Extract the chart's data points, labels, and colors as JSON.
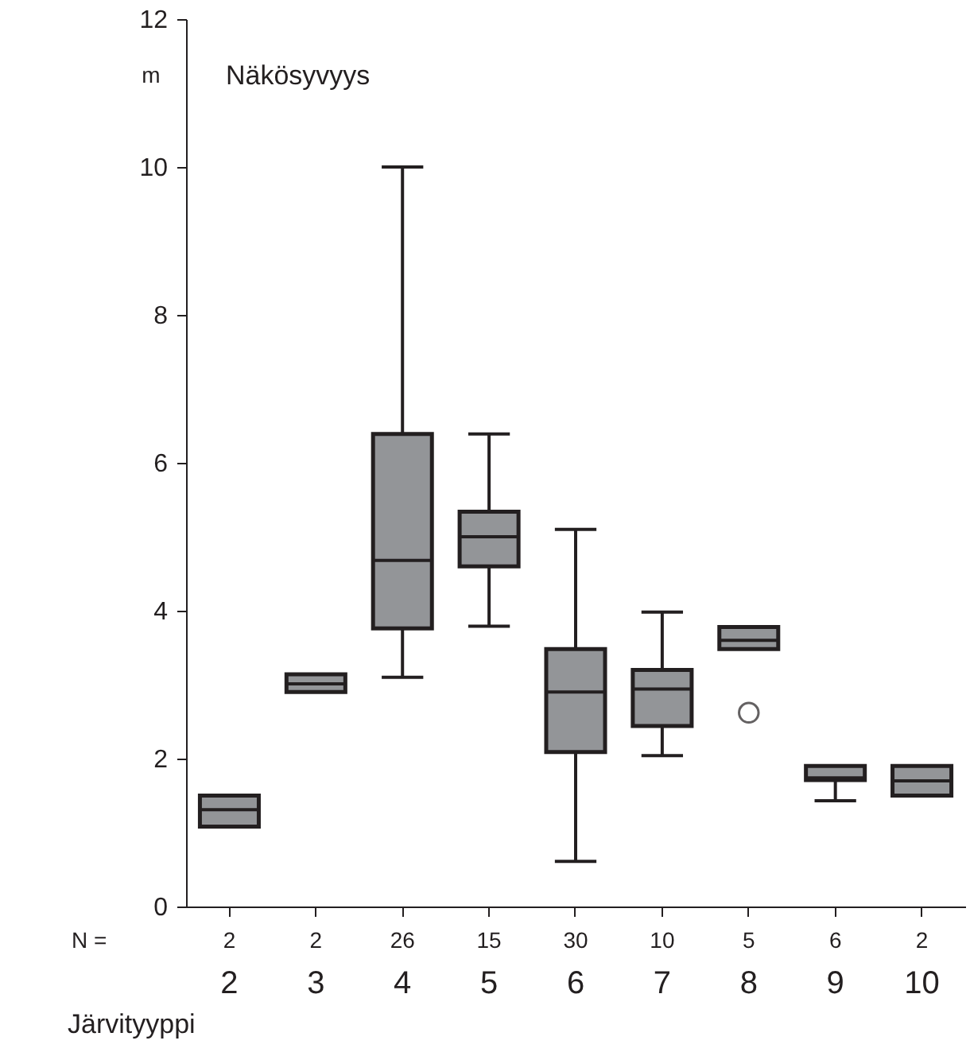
{
  "chart_data": {
    "type": "box",
    "title": "Näkösyvyys",
    "ylabel": "m",
    "xlabel": "Järvityyppi",
    "categories": [
      "2",
      "3",
      "4",
      "5",
      "6",
      "7",
      "8",
      "9",
      "10"
    ],
    "series": [
      {
        "color": "#939598",
        "boxes": [
          {
            "low": 1.08,
            "q1": 1.08,
            "median": 1.31,
            "q3": 1.5,
            "high": 1.5
          },
          {
            "low": 2.9,
            "q1": 2.9,
            "median": 3.01,
            "q3": 3.14,
            "high": 3.14
          },
          {
            "low": 3.1,
            "q1": 3.76,
            "median": 4.68,
            "q3": 6.39,
            "high": 10
          },
          {
            "low": 3.79,
            "q1": 4.6,
            "median": 5.0,
            "q3": 5.34,
            "high": 6.39
          },
          {
            "low": 0.61,
            "q1": 2.09,
            "median": 2.9,
            "q3": 3.48,
            "high": 5.1
          },
          {
            "low": 2.04,
            "q1": 2.44,
            "median": 2.94,
            "q3": 3.2,
            "high": 3.98
          },
          {
            "low": 3.48,
            "q1": 3.48,
            "median": 3.6,
            "q3": 3.78,
            "high": 3.78,
            "outliers": [
              2.62
            ]
          },
          {
            "low": 1.43,
            "q1": 1.71,
            "median": 1.74,
            "q3": 1.9,
            "high": 1.9
          },
          {
            "low": 1.5,
            "q1": 1.5,
            "median": 1.7,
            "q3": 1.9,
            "high": 1.9
          }
        ]
      }
    ],
    "ylim": [
      0,
      12
    ],
    "yticks": [
      0,
      2,
      4,
      6,
      8,
      10,
      12
    ],
    "grid": false,
    "annotations": [
      "N =",
      "2",
      "2",
      "26",
      "15",
      "30",
      "10",
      "5",
      "6",
      "2"
    ]
  }
}
